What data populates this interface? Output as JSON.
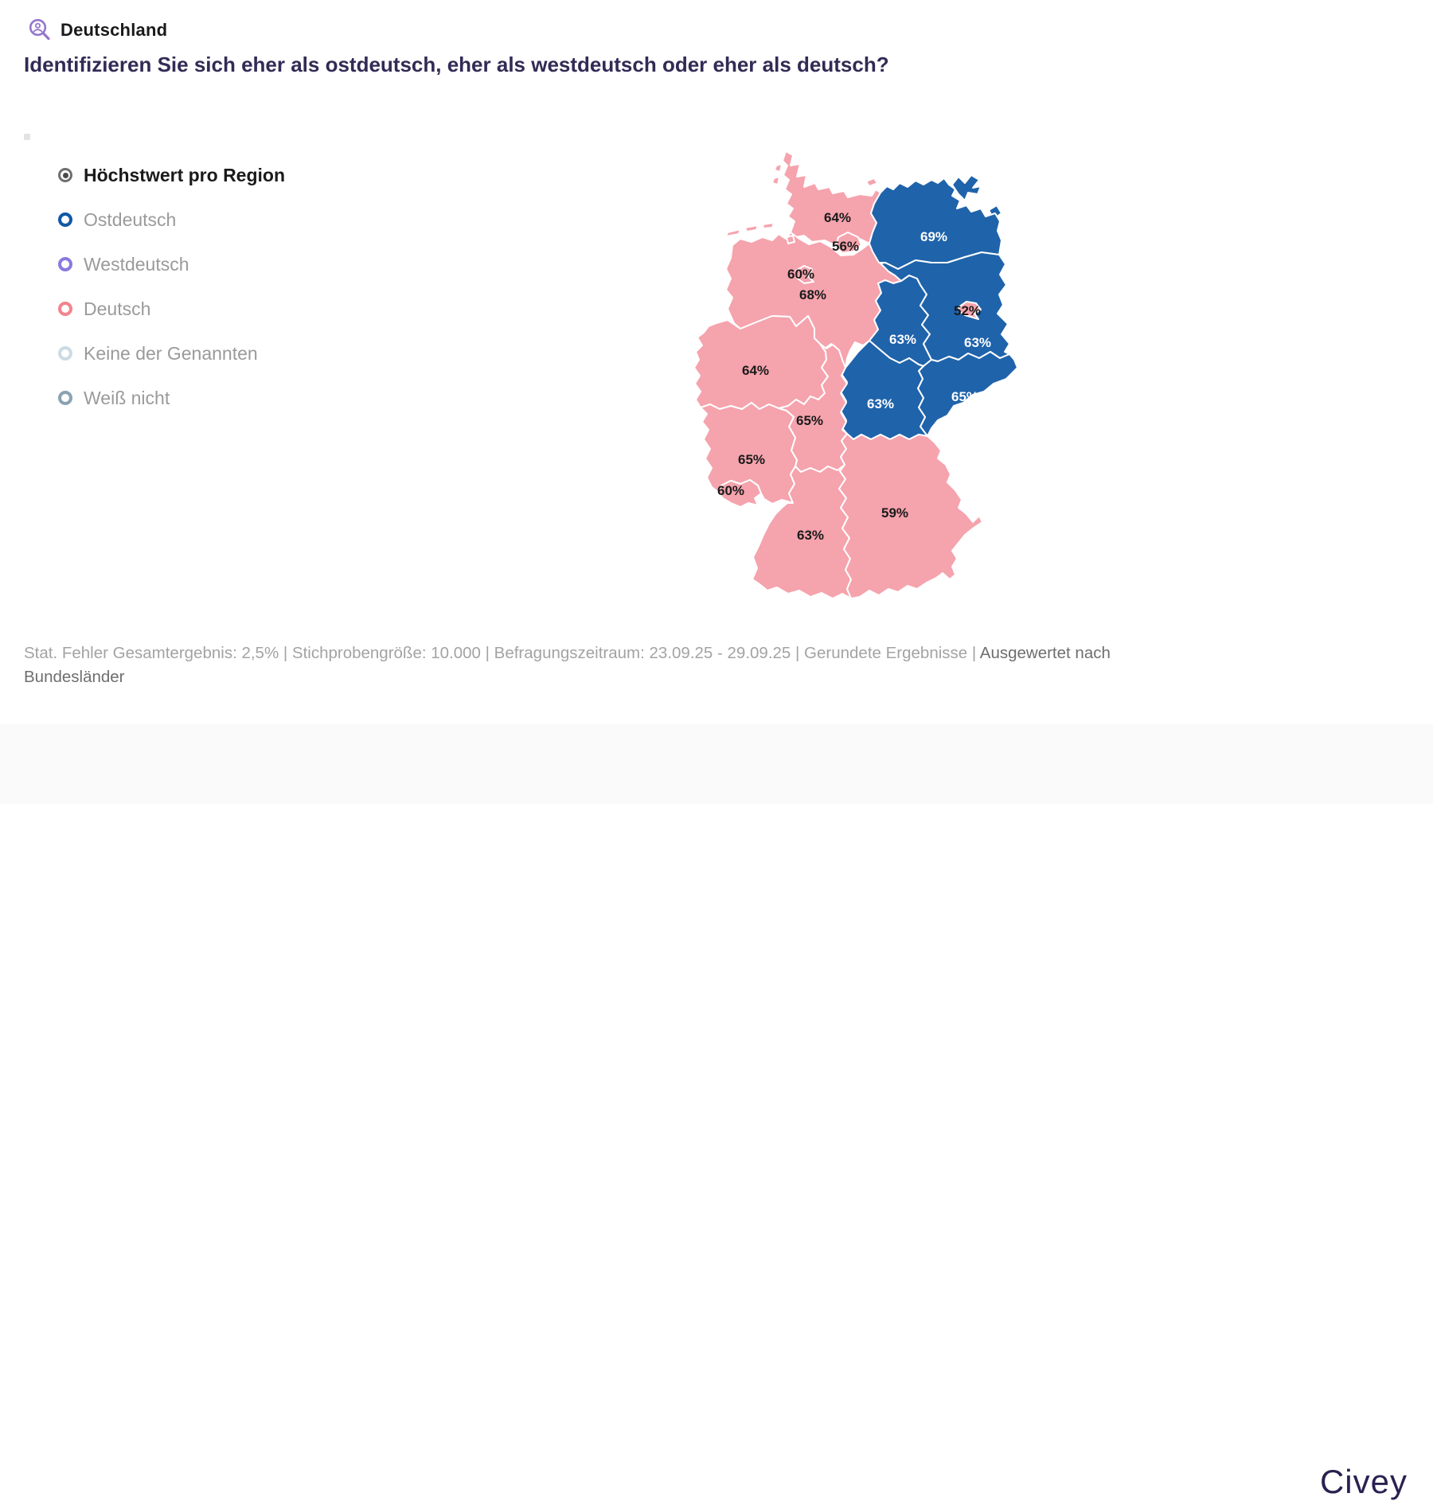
{
  "header": {
    "region_label": "Deutschland",
    "question": "Identifizieren Sie sich eher als ostdeutsch, eher als westdeutsch oder eher als deutsch?"
  },
  "legend": {
    "items": [
      {
        "label": "Höchstwert pro Region",
        "color": "#6f6f6f",
        "style": "target"
      },
      {
        "label": "Ostdeutsch",
        "color": "#1059a5",
        "style": "ring"
      },
      {
        "label": "Westdeutsch",
        "color": "#8a79dd",
        "style": "ring"
      },
      {
        "label": "Deutsch",
        "color": "#f3848e",
        "style": "ring"
      },
      {
        "label": "Keine der Genannten",
        "color": "#ccdbe3",
        "style": "ring"
      },
      {
        "label": "Weiß nicht",
        "color": "#8ba2b2",
        "style": "ring"
      }
    ]
  },
  "colors": {
    "ostdeutsch": "#1f63ab",
    "deutsch": "#f5a3ad",
    "label_on_deutsch": "#1a1a1a",
    "label_on_ostdeutsch": "#ffffff"
  },
  "chart_data": {
    "type": "choropleth",
    "title": "Identifizieren Sie sich eher als ostdeutsch, eher als westdeutsch oder eher als deutsch?",
    "scope": "Deutschland",
    "legend_position": "left",
    "regions": [
      {
        "name": "Niedersachsen",
        "value": "68%",
        "leading": "Deutsch"
      },
      {
        "name": "Schleswig-Holstein",
        "value": "64%",
        "leading": "Deutsch"
      },
      {
        "name": "Hamburg",
        "value": "56%",
        "leading": "Deutsch"
      },
      {
        "name": "Mecklenburg-Vorpommern",
        "value": "69%",
        "leading": "Ostdeutsch"
      },
      {
        "name": "Sachsen-Anhalt",
        "value": "63%",
        "leading": "Ostdeutsch"
      },
      {
        "name": "Brandenburg",
        "value": "63%",
        "leading": "Ostdeutsch"
      },
      {
        "name": "Berlin",
        "value": "52%",
        "leading": "Deutsch"
      },
      {
        "name": "Sachsen",
        "value": "65%",
        "leading": "Ostdeutsch"
      },
      {
        "name": "Thüringen",
        "value": "63%",
        "leading": "Ostdeutsch"
      },
      {
        "name": "Nordrhein-Westfalen",
        "value": "64%",
        "leading": "Deutsch"
      },
      {
        "name": "Hessen",
        "value": "65%",
        "leading": "Deutsch"
      },
      {
        "name": "Rheinland-Pfalz",
        "value": "65%",
        "leading": "Deutsch"
      },
      {
        "name": "Saarland",
        "value": "60%",
        "leading": "Deutsch"
      },
      {
        "name": "Baden-Württemberg",
        "value": "63%",
        "leading": "Deutsch"
      },
      {
        "name": "Bayern",
        "value": "59%",
        "leading": "Deutsch"
      },
      {
        "name": "Bremen",
        "value": "60%",
        "leading": "Deutsch"
      }
    ]
  },
  "footer": {
    "stats": "Stat. Fehler Gesamtergebnis: 2,5% | Stichprobengröße: 10.000 | Befragungszeitraum: 23.09.25 - 29.09.25 | Gerundete Ergebnisse | ",
    "evaluated_by": "Ausgewertet nach Bundesländer"
  },
  "branding": {
    "logo": "Civey"
  }
}
